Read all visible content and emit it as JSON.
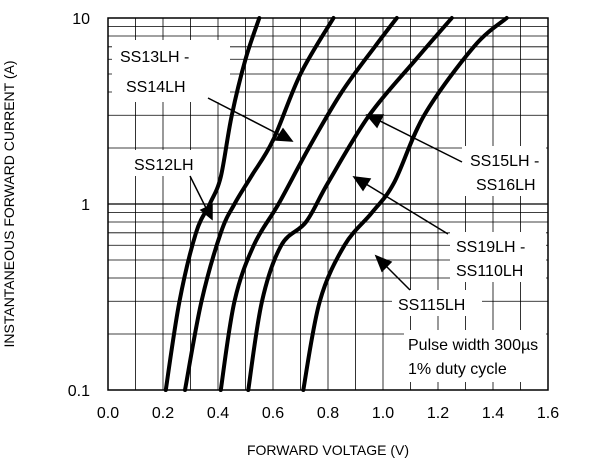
{
  "chart_data": {
    "type": "line",
    "xlabel": "FORWARD VOLTAGE (V)",
    "ylabel": "INSTANTANEOUS FORWARD CURRENT (A)",
    "xlim": [
      0.0,
      1.6
    ],
    "ylim": [
      0.1,
      10
    ],
    "yscale": "log",
    "grid": true,
    "x_ticks": [
      "0.0",
      "0.2",
      "0.4",
      "0.6",
      "0.8",
      "1.0",
      "1.2",
      "1.4",
      "1.6"
    ],
    "y_ticks": [
      "0.1",
      "1",
      "10"
    ],
    "series": [
      {
        "name": "SS12LH",
        "points": [
          [
            0.21,
            0.1
          ],
          [
            0.26,
            0.3
          ],
          [
            0.32,
            0.7
          ],
          [
            0.37,
            1.0
          ],
          [
            0.41,
            1.4
          ],
          [
            0.45,
            3.0
          ],
          [
            0.5,
            6.0
          ],
          [
            0.55,
            10
          ]
        ]
      },
      {
        "name": "SS13LH - SS14LH",
        "points": [
          [
            0.28,
            0.1
          ],
          [
            0.34,
            0.3
          ],
          [
            0.41,
            0.7
          ],
          [
            0.46,
            1.0
          ],
          [
            0.52,
            1.4
          ],
          [
            0.6,
            2.2
          ],
          [
            0.7,
            5.0
          ],
          [
            0.82,
            10
          ]
        ]
      },
      {
        "name": "SS15LH - SS16LH",
        "points": [
          [
            0.41,
            0.1
          ],
          [
            0.46,
            0.3
          ],
          [
            0.53,
            0.6
          ],
          [
            0.62,
            1.0
          ],
          [
            0.73,
            2.0
          ],
          [
            0.85,
            4.0
          ],
          [
            0.97,
            7.0
          ],
          [
            1.05,
            10
          ]
        ]
      },
      {
        "name": "SS19LH - SS110LH",
        "points": [
          [
            0.51,
            0.1
          ],
          [
            0.56,
            0.3
          ],
          [
            0.63,
            0.6
          ],
          [
            0.72,
            0.8
          ],
          [
            0.8,
            1.3
          ],
          [
            0.95,
            3.0
          ],
          [
            1.12,
            6.0
          ],
          [
            1.25,
            10
          ]
        ]
      },
      {
        "name": "SS115LH",
        "points": [
          [
            0.71,
            0.1
          ],
          [
            0.77,
            0.3
          ],
          [
            0.86,
            0.6
          ],
          [
            0.96,
            0.9
          ],
          [
            1.04,
            1.3
          ],
          [
            1.15,
            3.0
          ],
          [
            1.33,
            7.0
          ],
          [
            1.45,
            10
          ]
        ]
      }
    ],
    "annotations": {
      "ss12": "SS12LH",
      "ss13_line1": "SS13LH -",
      "ss13_line2": "SS14LH",
      "ss15_line1": "SS15LH -",
      "ss15_line2": "SS16LH",
      "ss19_line1": "SS19LH -",
      "ss19_line2": "SS110LH",
      "ss115": "SS115LH",
      "pulse_line1": "Pulse width 300µs",
      "pulse_line2": "1% duty cycle"
    }
  }
}
